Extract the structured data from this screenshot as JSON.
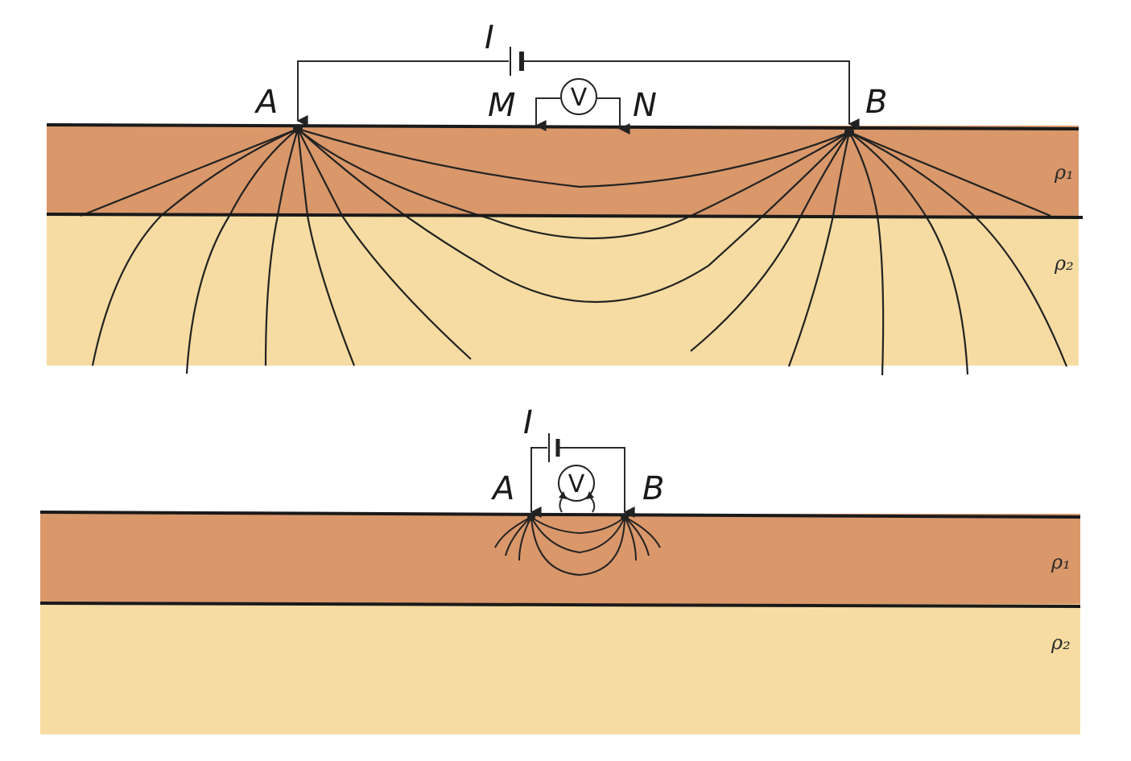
{
  "colors": {
    "layer1": "#d9976a",
    "layer2": "#f6dca2",
    "line": "#1a1a1a"
  },
  "diagram_top": {
    "current_label": "I",
    "electrode_a": "A",
    "electrode_b": "B",
    "electrode_m": "M",
    "electrode_n": "N",
    "voltmeter_symbol": "V",
    "layer1_label": "ρ₁",
    "layer2_label": "ρ₂"
  },
  "diagram_bottom": {
    "current_label": "I",
    "electrode_a": "A",
    "electrode_b": "B",
    "voltmeter_symbol": "V",
    "layer1_label": "ρ₁",
    "layer2_label": "ρ₂"
  }
}
